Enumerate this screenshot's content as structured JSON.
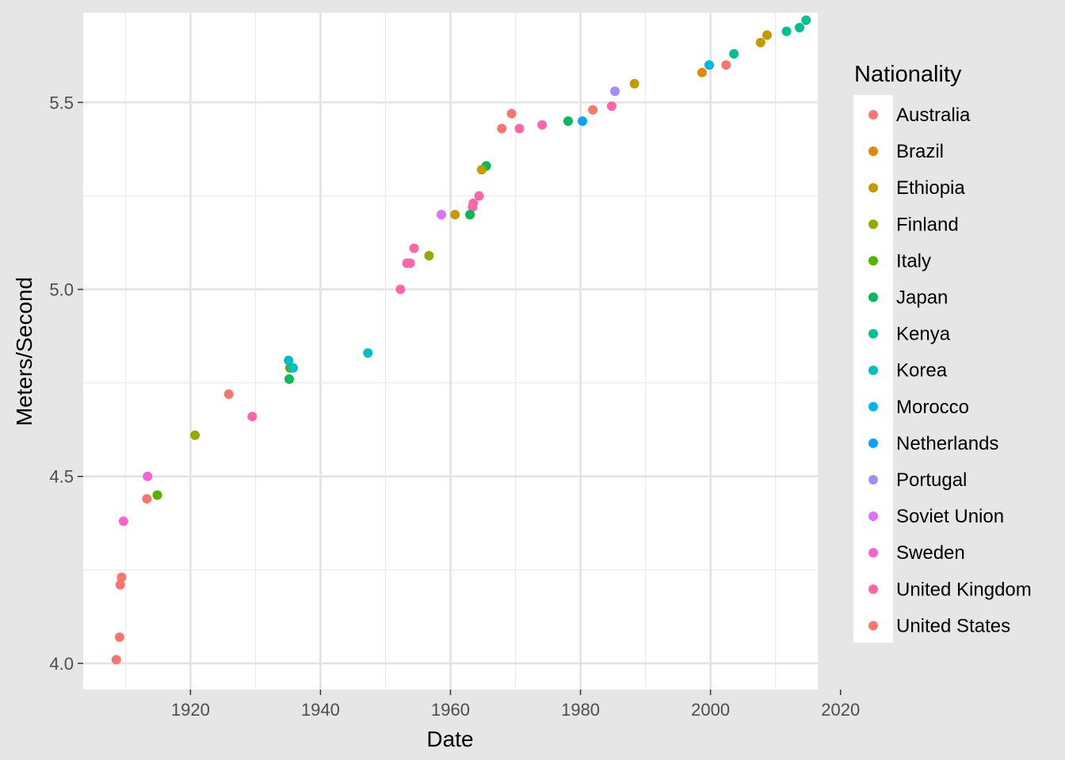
{
  "chart_data": {
    "type": "scatter",
    "xlabel": "Date",
    "ylabel": "Meters/Second",
    "xlim": [
      1903.5,
      2016.5
    ],
    "ylim": [
      3.93,
      5.74
    ],
    "x_ticks": [
      1920,
      1940,
      1960,
      1980,
      2000,
      2020
    ],
    "y_ticks": [
      4.0,
      4.5,
      5.0,
      5.5
    ],
    "y_tick_labels": [
      "4.0",
      "4.5",
      "5.0",
      "5.5"
    ],
    "grid": true,
    "legend": {
      "title": "Nationality",
      "placement": "right",
      "entries": [
        "Australia",
        "Brazil",
        "Ethiopia",
        "Finland",
        "Italy",
        "Japan",
        "Kenya",
        "Korea",
        "Morocco",
        "Netherlands",
        "Portugal",
        "Soviet Union",
        "Sweden",
        "United Kingdom",
        "United States"
      ]
    },
    "colors": {
      "Australia": "#F8766D",
      "Brazil": "#E38900",
      "Ethiopia": "#C49A00",
      "Finland": "#99A800",
      "Italy": "#53B400",
      "Japan": "#00BC56",
      "Kenya": "#00C094",
      "Korea": "#00BFC4",
      "Morocco": "#00B6EB",
      "Netherlands": "#06A4FF",
      "Portugal": "#A58AFF",
      "Soviet Union": "#DF70F8",
      "Sweden": "#FB61D7",
      "United Kingdom": "#FF66A8",
      "United States": "#F8766D"
    },
    "series": [
      {
        "name": "United States",
        "points": [
          [
            1908.6,
            4.01
          ],
          [
            1909.1,
            4.07
          ],
          [
            1909.2,
            4.21
          ],
          [
            1909.4,
            4.23
          ],
          [
            1913.3,
            4.44
          ],
          [
            1925.9,
            4.72
          ],
          [
            2002.4,
            5.6
          ]
        ]
      },
      {
        "name": "Sweden",
        "points": [
          [
            1909.7,
            4.38
          ],
          [
            1913.4,
            4.5
          ]
        ]
      },
      {
        "name": "Italy",
        "points": [
          [
            1914.9,
            4.45
          ]
        ]
      },
      {
        "name": "Finland",
        "points": [
          [
            1920.7,
            4.61
          ],
          [
            1956.7,
            5.09
          ]
        ]
      },
      {
        "name": "United Kingdom",
        "points": [
          [
            1929.5,
            4.66
          ],
          [
            1952.3,
            5.0
          ],
          [
            1953.3,
            5.07
          ],
          [
            1953.8,
            5.07
          ],
          [
            1954.4,
            5.11
          ],
          [
            1963.4,
            5.22
          ],
          [
            1963.5,
            5.23
          ],
          [
            1964.4,
            5.25
          ],
          [
            1970.6,
            5.43
          ],
          [
            1974.1,
            5.44
          ],
          [
            1984.8,
            5.49
          ]
        ]
      },
      {
        "name": "Japan",
        "points": [
          [
            1935.2,
            4.76
          ],
          [
            1963.0,
            5.2
          ],
          [
            1965.5,
            5.33
          ],
          [
            1978.1,
            5.45
          ]
        ]
      },
      {
        "name": "Italy",
        "points": [
          [
            1935.3,
            4.79
          ]
        ]
      },
      {
        "name": "Korea",
        "points": [
          [
            1935.1,
            4.81
          ],
          [
            1935.8,
            4.79
          ],
          [
            1947.3,
            4.83
          ]
        ]
      },
      {
        "name": "Soviet Union",
        "points": [
          [
            1958.6,
            5.2
          ]
        ]
      },
      {
        "name": "Ethiopia",
        "points": [
          [
            1960.7,
            5.2
          ],
          [
            1964.8,
            5.32
          ],
          [
            1988.3,
            5.55
          ],
          [
            2007.7,
            5.66
          ],
          [
            2008.7,
            5.68
          ]
        ]
      },
      {
        "name": "Australia",
        "points": [
          [
            1967.9,
            5.43
          ],
          [
            1969.4,
            5.47
          ],
          [
            1981.9,
            5.48
          ]
        ]
      },
      {
        "name": "Netherlands",
        "points": [
          [
            1980.3,
            5.45
          ]
        ]
      },
      {
        "name": "Portugal",
        "points": [
          [
            1985.3,
            5.53
          ]
        ]
      },
      {
        "name": "Brazil",
        "points": [
          [
            1998.7,
            5.58
          ]
        ]
      },
      {
        "name": "Morocco",
        "points": [
          [
            1999.8,
            5.6
          ]
        ]
      },
      {
        "name": "Kenya",
        "points": [
          [
            2003.6,
            5.63
          ],
          [
            2011.7,
            5.69
          ],
          [
            2013.7,
            5.7
          ],
          [
            2014.7,
            5.72
          ]
        ]
      }
    ]
  }
}
